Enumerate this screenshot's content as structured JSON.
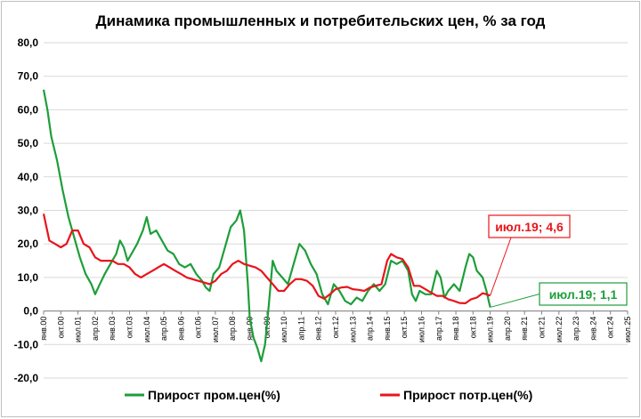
{
  "chart_data": {
    "type": "line",
    "title": "Динамика промышленных и потребительских цен, % за год",
    "ylim": [
      -20,
      80
    ],
    "yticks": [
      "-20,0",
      "-10,0",
      "0,0",
      "10,0",
      "20,0",
      "30,0",
      "40,0",
      "50,0",
      "60,0",
      "70,0",
      "80,0"
    ],
    "xlim": [
      "2000-01",
      "2025-07"
    ],
    "xtick_labels": [
      "янв.00",
      "окт.00",
      "июл.01",
      "апр.02",
      "янв.03",
      "окт.03",
      "июл.04",
      "апр.05",
      "янв.06",
      "окт.06",
      "июл.07",
      "апр.08",
      "янв.09",
      "окт.09",
      "июл.10",
      "апр.11",
      "янв.12",
      "окт.12",
      "июл.13",
      "апр.14",
      "янв.15",
      "окт.15",
      "июл.16",
      "апр.17",
      "янв.18",
      "окт.18",
      "июл.19",
      "апр.20",
      "янв.21",
      "окт.21",
      "июл.22",
      "апр.23",
      "янв.24",
      "окт.24",
      "июл.25"
    ],
    "grid": true,
    "legend_position": "bottom",
    "series": [
      {
        "name": "Прирост пром.цен(%)",
        "color": "#1e9e3a",
        "points": [
          [
            "2000-01",
            66
          ],
          [
            "2000-03",
            60
          ],
          [
            "2000-05",
            52
          ],
          [
            "2000-08",
            45
          ],
          [
            "2000-11",
            36
          ],
          [
            "2001-02",
            28
          ],
          [
            "2001-05",
            22
          ],
          [
            "2001-08",
            16
          ],
          [
            "2001-11",
            11
          ],
          [
            "2002-02",
            8
          ],
          [
            "2002-04",
            5
          ],
          [
            "2002-06",
            7.5
          ],
          [
            "2002-09",
            11
          ],
          [
            "2002-12",
            14
          ],
          [
            "2003-03",
            17
          ],
          [
            "2003-05",
            21
          ],
          [
            "2003-07",
            19
          ],
          [
            "2003-09",
            15
          ],
          [
            "2003-11",
            17
          ],
          [
            "2004-02",
            20
          ],
          [
            "2004-05",
            24
          ],
          [
            "2004-07",
            28
          ],
          [
            "2004-09",
            23
          ],
          [
            "2004-12",
            24
          ],
          [
            "2005-03",
            21
          ],
          [
            "2005-06",
            18
          ],
          [
            "2005-09",
            17
          ],
          [
            "2005-12",
            14
          ],
          [
            "2006-03",
            13
          ],
          [
            "2006-06",
            14
          ],
          [
            "2006-09",
            11
          ],
          [
            "2006-12",
            9
          ],
          [
            "2007-02",
            7
          ],
          [
            "2007-04",
            6
          ],
          [
            "2007-06",
            11
          ],
          [
            "2007-09",
            13
          ],
          [
            "2007-12",
            19
          ],
          [
            "2008-03",
            25
          ],
          [
            "2008-06",
            27
          ],
          [
            "2008-08",
            30
          ],
          [
            "2008-10",
            24
          ],
          [
            "2008-12",
            8
          ],
          [
            "2009-01",
            -2
          ],
          [
            "2009-03",
            -8
          ],
          [
            "2009-05",
            -11
          ],
          [
            "2009-07",
            -15
          ],
          [
            "2009-09",
            -10
          ],
          [
            "2009-11",
            2
          ],
          [
            "2010-01",
            15
          ],
          [
            "2010-03",
            12
          ],
          [
            "2010-06",
            10
          ],
          [
            "2010-09",
            8
          ],
          [
            "2010-12",
            14
          ],
          [
            "2011-03",
            20
          ],
          [
            "2011-06",
            18
          ],
          [
            "2011-09",
            14
          ],
          [
            "2011-12",
            11
          ],
          [
            "2012-03",
            5
          ],
          [
            "2012-06",
            2
          ],
          [
            "2012-09",
            8
          ],
          [
            "2012-12",
            6
          ],
          [
            "2013-03",
            3
          ],
          [
            "2013-06",
            2
          ],
          [
            "2013-09",
            4
          ],
          [
            "2013-12",
            3
          ],
          [
            "2014-03",
            6
          ],
          [
            "2014-06",
            8
          ],
          [
            "2014-09",
            6
          ],
          [
            "2014-12",
            8
          ],
          [
            "2015-03",
            15
          ],
          [
            "2015-06",
            14
          ],
          [
            "2015-09",
            15
          ],
          [
            "2015-12",
            12
          ],
          [
            "2016-02",
            5
          ],
          [
            "2016-04",
            3
          ],
          [
            "2016-06",
            6
          ],
          [
            "2016-09",
            5
          ],
          [
            "2016-12",
            5
          ],
          [
            "2017-03",
            12
          ],
          [
            "2017-05",
            10
          ],
          [
            "2017-07",
            4
          ],
          [
            "2017-09",
            6
          ],
          [
            "2017-12",
            8
          ],
          [
            "2018-03",
            6
          ],
          [
            "2018-06",
            13
          ],
          [
            "2018-08",
            17
          ],
          [
            "2018-10",
            16
          ],
          [
            "2018-12",
            12
          ],
          [
            "2019-03",
            10
          ],
          [
            "2019-05",
            6
          ],
          [
            "2019-07",
            1.1
          ]
        ]
      },
      {
        "name": "Прирост потр.цен(%)",
        "color": "#e8141b",
        "points": [
          [
            "2000-01",
            29
          ],
          [
            "2000-04",
            21
          ],
          [
            "2000-07",
            20
          ],
          [
            "2000-10",
            19
          ],
          [
            "2001-01",
            20
          ],
          [
            "2001-04",
            24
          ],
          [
            "2001-07",
            24
          ],
          [
            "2001-10",
            20
          ],
          [
            "2002-01",
            19
          ],
          [
            "2002-04",
            16
          ],
          [
            "2002-07",
            15
          ],
          [
            "2002-10",
            15
          ],
          [
            "2003-01",
            15
          ],
          [
            "2003-04",
            14
          ],
          [
            "2003-07",
            14
          ],
          [
            "2003-10",
            13
          ],
          [
            "2004-01",
            11
          ],
          [
            "2004-04",
            10
          ],
          [
            "2004-07",
            11
          ],
          [
            "2004-10",
            12
          ],
          [
            "2005-01",
            13
          ],
          [
            "2005-04",
            14
          ],
          [
            "2005-07",
            13
          ],
          [
            "2005-10",
            12
          ],
          [
            "2006-01",
            11
          ],
          [
            "2006-04",
            10
          ],
          [
            "2006-07",
            9.5
          ],
          [
            "2006-10",
            9
          ],
          [
            "2007-01",
            8.5
          ],
          [
            "2007-04",
            8
          ],
          [
            "2007-07",
            9
          ],
          [
            "2007-10",
            11
          ],
          [
            "2008-01",
            12
          ],
          [
            "2008-04",
            14
          ],
          [
            "2008-07",
            15
          ],
          [
            "2008-10",
            14
          ],
          [
            "2009-01",
            13.5
          ],
          [
            "2009-04",
            13
          ],
          [
            "2009-07",
            12
          ],
          [
            "2009-10",
            10
          ],
          [
            "2010-01",
            8
          ],
          [
            "2010-04",
            6
          ],
          [
            "2010-07",
            6
          ],
          [
            "2010-10",
            8
          ],
          [
            "2011-01",
            9.5
          ],
          [
            "2011-04",
            9.5
          ],
          [
            "2011-07",
            9
          ],
          [
            "2011-10",
            7.5
          ],
          [
            "2012-01",
            4.5
          ],
          [
            "2012-04",
            3.7
          ],
          [
            "2012-07",
            5
          ],
          [
            "2012-10",
            6.5
          ],
          [
            "2013-01",
            7
          ],
          [
            "2013-04",
            7.2
          ],
          [
            "2013-07",
            6.5
          ],
          [
            "2013-10",
            6.3
          ],
          [
            "2014-01",
            6
          ],
          [
            "2014-04",
            7
          ],
          [
            "2014-07",
            7.5
          ],
          [
            "2014-10",
            8
          ],
          [
            "2015-01",
            15
          ],
          [
            "2015-03",
            17
          ],
          [
            "2015-06",
            16
          ],
          [
            "2015-09",
            15.5
          ],
          [
            "2015-12",
            13
          ],
          [
            "2016-03",
            7.5
          ],
          [
            "2016-06",
            7.5
          ],
          [
            "2016-09",
            6.5
          ],
          [
            "2016-12",
            5.5
          ],
          [
            "2017-03",
            4.5
          ],
          [
            "2017-06",
            4.5
          ],
          [
            "2017-09",
            3.5
          ],
          [
            "2017-12",
            3
          ],
          [
            "2018-03",
            2.4
          ],
          [
            "2018-06",
            2.3
          ],
          [
            "2018-09",
            3.5
          ],
          [
            "2018-12",
            4
          ],
          [
            "2019-03",
            5.3
          ],
          [
            "2019-05",
            5
          ],
          [
            "2019-07",
            4.6
          ]
        ]
      }
    ],
    "annotations": [
      {
        "text": "июл.19; 4,6",
        "series": "Прирост потр.цен(%)",
        "x": "2019-07",
        "y": 4.6,
        "color": "#e8141b"
      },
      {
        "text": "июл.19; 1,1",
        "series": "Прирост пром.цен(%)",
        "x": "2019-07",
        "y": 1.1,
        "color": "#1e9e3a"
      }
    ]
  }
}
